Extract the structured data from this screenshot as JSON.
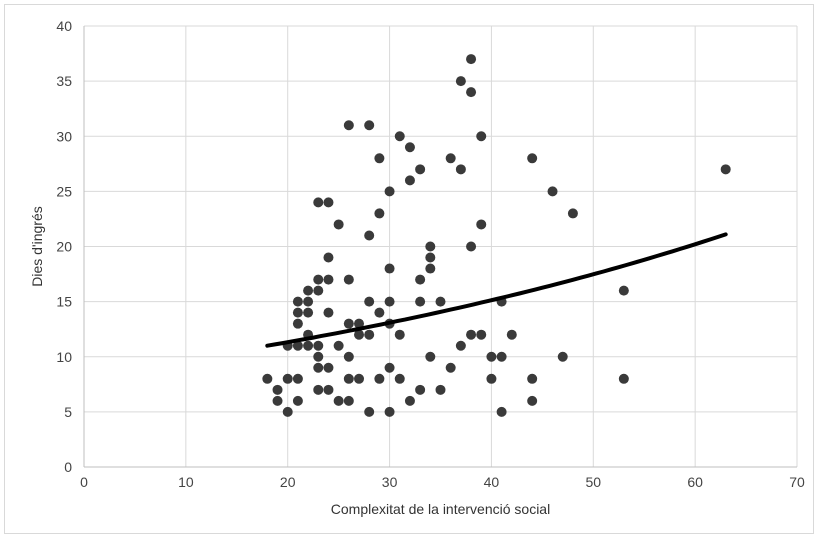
{
  "chart_data": {
    "type": "scatter",
    "title": "",
    "xlabel": "Complexitat de la intervenció social",
    "ylabel": "Dies d'ingrés",
    "xlim": [
      0,
      70
    ],
    "ylim": [
      0,
      40
    ],
    "x_ticks": [
      0,
      10,
      20,
      30,
      40,
      50,
      60,
      70
    ],
    "y_ticks": [
      0,
      5,
      10,
      15,
      20,
      25,
      30,
      35,
      40
    ],
    "x_tick_labels": [
      "0",
      "10",
      "20",
      "30",
      "40",
      "50",
      "60",
      "70"
    ],
    "y_tick_labels": [
      "0",
      "5",
      "10",
      "15",
      "20",
      "25",
      "30",
      "35",
      "40"
    ],
    "grid": true,
    "colors": {
      "points": "#3a3a3a",
      "trend": "#000000",
      "grid": "#d9d9d9",
      "axis": "#bfbfbf"
    },
    "points": [
      [
        18,
        8
      ],
      [
        19,
        7
      ],
      [
        19,
        6
      ],
      [
        20,
        8
      ],
      [
        20,
        5
      ],
      [
        20,
        11
      ],
      [
        21,
        15
      ],
      [
        21,
        14
      ],
      [
        21,
        13
      ],
      [
        21,
        11
      ],
      [
        21,
        8
      ],
      [
        21,
        6
      ],
      [
        22,
        16
      ],
      [
        22,
        15
      ],
      [
        22,
        14
      ],
      [
        22,
        12
      ],
      [
        22,
        11
      ],
      [
        23,
        24
      ],
      [
        23,
        17
      ],
      [
        23,
        16
      ],
      [
        23,
        11
      ],
      [
        23,
        10
      ],
      [
        23,
        9
      ],
      [
        23,
        7
      ],
      [
        24,
        24
      ],
      [
        24,
        19
      ],
      [
        24,
        17
      ],
      [
        24,
        14
      ],
      [
        24,
        9
      ],
      [
        24,
        7
      ],
      [
        25,
        22
      ],
      [
        25,
        11
      ],
      [
        25,
        6
      ],
      [
        26,
        31
      ],
      [
        26,
        17
      ],
      [
        26,
        13
      ],
      [
        26,
        10
      ],
      [
        26,
        8
      ],
      [
        26,
        6
      ],
      [
        27,
        13
      ],
      [
        27,
        12
      ],
      [
        27,
        8
      ],
      [
        28,
        31
      ],
      [
        28,
        21
      ],
      [
        28,
        15
      ],
      [
        28,
        12
      ],
      [
        28,
        5
      ],
      [
        29,
        28
      ],
      [
        29,
        23
      ],
      [
        29,
        14
      ],
      [
        29,
        8
      ],
      [
        30,
        25
      ],
      [
        30,
        18
      ],
      [
        30,
        15
      ],
      [
        30,
        13
      ],
      [
        30,
        9
      ],
      [
        30,
        5
      ],
      [
        31,
        30
      ],
      [
        31,
        12
      ],
      [
        31,
        8
      ],
      [
        32,
        29
      ],
      [
        32,
        26
      ],
      [
        32,
        6
      ],
      [
        33,
        27
      ],
      [
        33,
        17
      ],
      [
        33,
        15
      ],
      [
        33,
        7
      ],
      [
        34,
        20
      ],
      [
        34,
        19
      ],
      [
        34,
        18
      ],
      [
        34,
        10
      ],
      [
        35,
        15
      ],
      [
        35,
        7
      ],
      [
        36,
        28
      ],
      [
        36,
        9
      ],
      [
        37,
        35
      ],
      [
        37,
        27
      ],
      [
        37,
        11
      ],
      [
        38,
        37
      ],
      [
        38,
        34
      ],
      [
        38,
        20
      ],
      [
        38,
        12
      ],
      [
        39,
        30
      ],
      [
        39,
        22
      ],
      [
        39,
        12
      ],
      [
        40,
        10
      ],
      [
        40,
        8
      ],
      [
        41,
        15
      ],
      [
        41,
        10
      ],
      [
        41,
        5
      ],
      [
        42,
        12
      ],
      [
        44,
        28
      ],
      [
        44,
        8
      ],
      [
        44,
        6
      ],
      [
        46,
        25
      ],
      [
        47,
        10
      ],
      [
        48,
        23
      ],
      [
        53,
        16
      ],
      [
        53,
        8
      ],
      [
        63,
        27
      ]
    ],
    "trendline": {
      "type": "exponential",
      "x_range": [
        18,
        63
      ],
      "y_start": 11.0,
      "y_end": 21.1
    }
  }
}
